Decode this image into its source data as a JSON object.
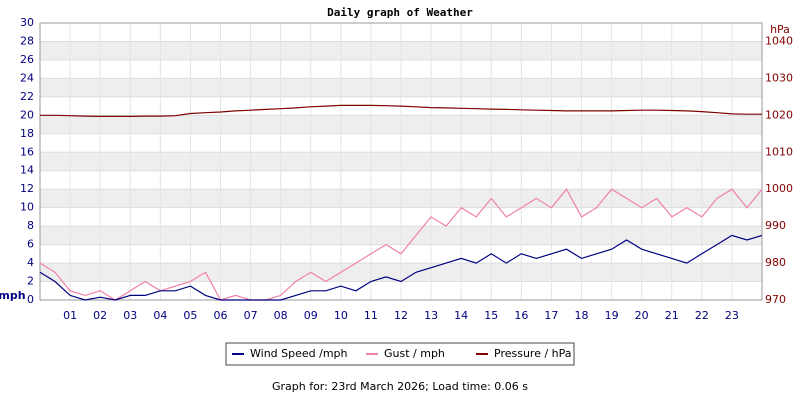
{
  "chart_data": {
    "type": "line",
    "title": "Daily graph of Weather",
    "y_label": "mph",
    "y2_label": "hPa",
    "x": [
      0,
      0.5,
      1,
      1.5,
      2,
      2.5,
      3,
      3.5,
      4,
      4.5,
      5,
      5.5,
      6,
      6.5,
      7,
      7.5,
      8,
      8.5,
      9,
      9.5,
      10,
      10.5,
      11,
      11.5,
      12,
      12.5,
      13,
      13.5,
      14,
      14.5,
      15,
      15.5,
      16,
      16.5,
      17,
      17.5,
      18,
      18.5,
      19,
      19.5,
      20,
      20.5,
      21,
      21.5,
      22,
      22.5,
      23,
      23.5,
      24
    ],
    "xlim": [
      0,
      24
    ],
    "xticks": [
      {
        "value": 1,
        "label": "01"
      },
      {
        "value": 2,
        "label": "02"
      },
      {
        "value": 3,
        "label": "03"
      },
      {
        "value": 4,
        "label": "04"
      },
      {
        "value": 5,
        "label": "05"
      },
      {
        "value": 6,
        "label": "06"
      },
      {
        "value": 7,
        "label": "07"
      },
      {
        "value": 8,
        "label": "08"
      },
      {
        "value": 9,
        "label": "09"
      },
      {
        "value": 10,
        "label": "10"
      },
      {
        "value": 11,
        "label": "11"
      },
      {
        "value": 12,
        "label": "12"
      },
      {
        "value": 13,
        "label": "13"
      },
      {
        "value": 14,
        "label": "14"
      },
      {
        "value": 15,
        "label": "15"
      },
      {
        "value": 16,
        "label": "16"
      },
      {
        "value": 17,
        "label": "17"
      },
      {
        "value": 18,
        "label": "18"
      },
      {
        "value": 19,
        "label": "19"
      },
      {
        "value": 20,
        "label": "20"
      },
      {
        "value": 21,
        "label": "21"
      },
      {
        "value": 22,
        "label": "22"
      },
      {
        "value": 23,
        "label": "23"
      }
    ],
    "ylim": [
      0,
      30
    ],
    "yticks": [
      0,
      2,
      4,
      6,
      8,
      10,
      12,
      14,
      16,
      18,
      20,
      22,
      24,
      26,
      28,
      30
    ],
    "y2lim": [
      970,
      1045
    ],
    "y2ticks": [
      970,
      980,
      990,
      1000,
      1010,
      1020,
      1030,
      1040
    ],
    "grid": true,
    "series": [
      {
        "name": "Wind Speed /mph",
        "color": "#000080",
        "values": [
          3,
          2,
          0.5,
          0,
          0.3,
          0,
          0.5,
          0.5,
          1,
          1,
          1.5,
          0.5,
          0,
          0,
          0,
          0,
          0,
          0.5,
          1,
          1,
          1.5,
          1,
          2,
          2.5,
          2,
          3,
          3.5,
          4,
          4.5,
          4,
          5,
          4,
          5,
          4.5,
          5,
          5.5,
          4.5,
          5,
          5.5,
          6.5,
          5.5,
          5,
          4.5,
          4,
          5,
          6,
          7,
          6.5,
          7
        ]
      },
      {
        "name": "Gust / mph",
        "color": "#f080a8",
        "values": [
          4,
          3,
          1,
          0.5,
          1,
          0,
          1,
          2,
          1,
          1.5,
          2,
          3,
          0,
          0.5,
          0,
          0,
          0.5,
          2,
          3,
          2,
          3,
          4,
          5,
          6,
          5,
          7,
          9,
          8,
          10,
          9,
          11,
          9,
          10,
          11,
          10,
          12,
          9,
          10,
          12,
          11,
          10,
          11,
          9,
          10,
          9,
          11,
          12,
          10,
          12
        ]
      },
      {
        "name": "Pressure / hPa",
        "color": "#800000",
        "axis": "y2",
        "values": [
          1020,
          1020,
          1019.9,
          1019.8,
          1019.7,
          1019.7,
          1019.7,
          1019.8,
          1019.8,
          1019.9,
          1020.5,
          1020.7,
          1020.9,
          1021.2,
          1021.4,
          1021.6,
          1021.8,
          1022,
          1022.3,
          1022.5,
          1022.7,
          1022.7,
          1022.7,
          1022.6,
          1022.5,
          1022.3,
          1022.1,
          1022,
          1021.9,
          1021.8,
          1021.7,
          1021.6,
          1021.5,
          1021.4,
          1021.3,
          1021.2,
          1021.2,
          1021.2,
          1021.2,
          1021.3,
          1021.4,
          1021.4,
          1021.3,
          1021.2,
          1021,
          1020.7,
          1020.4,
          1020.3,
          1020.3
        ]
      }
    ],
    "legend": "bottom",
    "footer": "Graph for: 23rd March 2026; Load time: 0.06 s"
  }
}
